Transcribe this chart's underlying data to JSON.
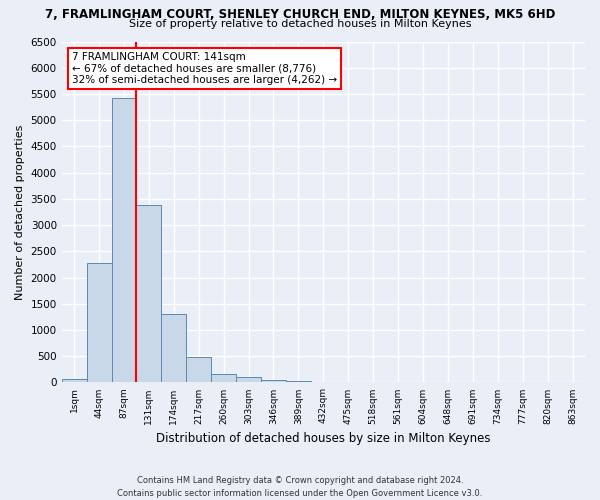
{
  "title1": "7, FRAMLINGHAM COURT, SHENLEY CHURCH END, MILTON KEYNES, MK5 6HD",
  "title2": "Size of property relative to detached houses in Milton Keynes",
  "xlabel": "Distribution of detached houses by size in Milton Keynes",
  "ylabel": "Number of detached properties",
  "bin_labels": [
    "1sqm",
    "44sqm",
    "87sqm",
    "131sqm",
    "174sqm",
    "217sqm",
    "260sqm",
    "303sqm",
    "346sqm",
    "389sqm",
    "432sqm",
    "475sqm",
    "518sqm",
    "561sqm",
    "604sqm",
    "648sqm",
    "691sqm",
    "734sqm",
    "777sqm",
    "820sqm",
    "863sqm"
  ],
  "bar_values": [
    60,
    2280,
    5430,
    3390,
    1300,
    480,
    165,
    95,
    55,
    30,
    15,
    10,
    5,
    3,
    2,
    1,
    1,
    1,
    0,
    0,
    0
  ],
  "bar_color": "#c8d8e8",
  "bar_edge_color": "#5a8ab0",
  "property_line_x": 2.5,
  "property_sqm": 141,
  "annotation_text": "7 FRAMLINGHAM COURT: 141sqm\n← 67% of detached houses are smaller (8,776)\n32% of semi-detached houses are larger (4,262) →",
  "annotation_box_color": "white",
  "annotation_box_edge_color": "red",
  "vline_color": "red",
  "ylim": [
    0,
    6500
  ],
  "yticks": [
    0,
    500,
    1000,
    1500,
    2000,
    2500,
    3000,
    3500,
    4000,
    4500,
    5000,
    5500,
    6000,
    6500
  ],
  "footnote": "Contains HM Land Registry data © Crown copyright and database right 2024.\nContains public sector information licensed under the Open Government Licence v3.0.",
  "bg_color": "#eaeff7",
  "grid_color": "white"
}
